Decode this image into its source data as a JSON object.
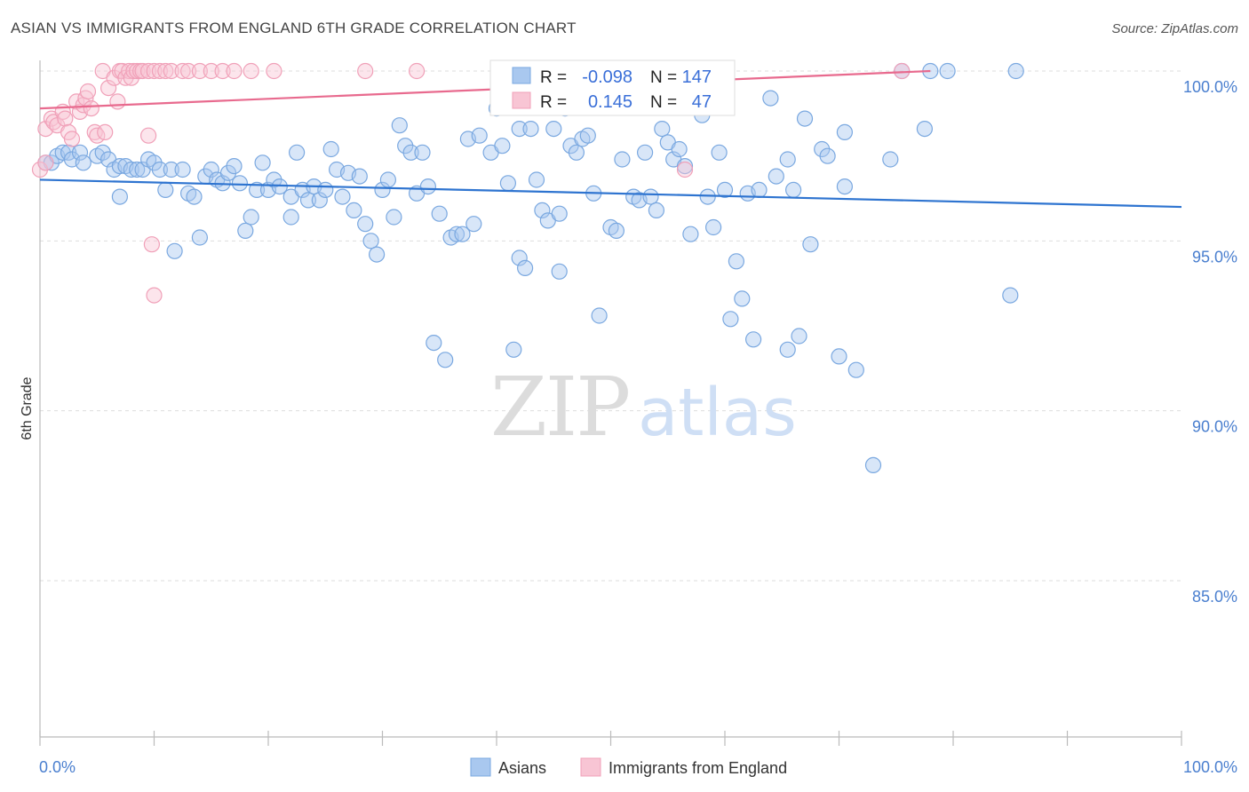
{
  "title": "ASIAN VS IMMIGRANTS FROM ENGLAND 6TH GRADE CORRELATION CHART",
  "source": "Source: ZipAtlas.com",
  "watermark": {
    "part1": "ZIP",
    "part2": "atlas"
  },
  "chart_data": {
    "type": "scatter",
    "ylabel": "6th Grade",
    "xlim": [
      0,
      100
    ],
    "ylim": [
      80,
      100.8
    ],
    "x_tick_labels": [
      "0.0%",
      "100.0%"
    ],
    "y_ticks": [
      85,
      90,
      95,
      100
    ],
    "y_tick_labels": [
      "85.0%",
      "90.0%",
      "95.0%",
      "100.0%"
    ],
    "grid": true,
    "legend_position": "bottom",
    "stats": [
      {
        "r_label": "R =",
        "r_value": "-0.098",
        "n_label": "N =",
        "n_value": "147"
      },
      {
        "r_label": "R =",
        "r_value": "0.145",
        "n_label": "N =",
        "n_value": "47"
      }
    ],
    "series": [
      {
        "name": "Asians",
        "color": "#7aa8e0",
        "fill": "#a9c8ef",
        "trend_color": "#2e74d0",
        "trend": {
          "x": [
            0,
            100
          ],
          "y": [
            96.8,
            96.0
          ]
        },
        "points": [
          [
            0.5,
            97.3
          ],
          [
            1.0,
            97.3
          ],
          [
            1.5,
            97.5
          ],
          [
            2.0,
            97.6
          ],
          [
            2.5,
            97.6
          ],
          [
            2.8,
            97.4
          ],
          [
            3.5,
            97.6
          ],
          [
            3.8,
            97.3
          ],
          [
            5.0,
            97.5
          ],
          [
            5.5,
            97.6
          ],
          [
            6.0,
            97.4
          ],
          [
            6.5,
            97.1
          ],
          [
            7.0,
            97.2
          ],
          [
            7.0,
            96.3
          ],
          [
            7.5,
            97.2
          ],
          [
            8.0,
            97.1
          ],
          [
            8.5,
            97.1
          ],
          [
            9.0,
            97.1
          ],
          [
            9.5,
            97.4
          ],
          [
            10.0,
            97.3
          ],
          [
            10.5,
            97.1
          ],
          [
            11.0,
            96.5
          ],
          [
            11.5,
            97.1
          ],
          [
            12.5,
            97.1
          ],
          [
            11.8,
            94.7
          ],
          [
            13.0,
            96.4
          ],
          [
            13.5,
            96.3
          ],
          [
            14.5,
            96.9
          ],
          [
            14.0,
            95.1
          ],
          [
            15.0,
            97.1
          ],
          [
            15.5,
            96.8
          ],
          [
            16.0,
            96.7
          ],
          [
            16.5,
            97.0
          ],
          [
            17.0,
            97.2
          ],
          [
            17.5,
            96.7
          ],
          [
            18.0,
            95.3
          ],
          [
            18.5,
            95.7
          ],
          [
            19.0,
            96.5
          ],
          [
            19.5,
            97.3
          ],
          [
            20.0,
            96.5
          ],
          [
            20.5,
            96.8
          ],
          [
            21.0,
            96.6
          ],
          [
            22.0,
            96.3
          ],
          [
            22.5,
            97.6
          ],
          [
            22.0,
            95.7
          ],
          [
            23.0,
            96.5
          ],
          [
            23.5,
            96.2
          ],
          [
            24.0,
            96.6
          ],
          [
            24.5,
            96.2
          ],
          [
            25.0,
            96.5
          ],
          [
            25.5,
            97.7
          ],
          [
            26.0,
            97.1
          ],
          [
            26.5,
            96.3
          ],
          [
            27.0,
            97.0
          ],
          [
            27.5,
            95.9
          ],
          [
            28.0,
            96.9
          ],
          [
            28.5,
            95.5
          ],
          [
            29.0,
            95.0
          ],
          [
            29.5,
            94.6
          ],
          [
            30.0,
            96.5
          ],
          [
            30.5,
            96.8
          ],
          [
            31.0,
            95.7
          ],
          [
            31.5,
            98.4
          ],
          [
            32.0,
            97.8
          ],
          [
            32.5,
            97.6
          ],
          [
            33.0,
            96.4
          ],
          [
            33.5,
            97.6
          ],
          [
            34.0,
            96.6
          ],
          [
            34.5,
            92.0
          ],
          [
            35.0,
            95.8
          ],
          [
            35.5,
            91.5
          ],
          [
            36.0,
            95.1
          ],
          [
            36.5,
            95.2
          ],
          [
            37.0,
            95.2
          ],
          [
            37.5,
            98.0
          ],
          [
            38.0,
            95.5
          ],
          [
            38.5,
            98.1
          ],
          [
            39.5,
            97.6
          ],
          [
            40.0,
            98.9
          ],
          [
            40.5,
            97.8
          ],
          [
            41.0,
            96.7
          ],
          [
            41.5,
            91.8
          ],
          [
            42.0,
            98.3
          ],
          [
            42.0,
            94.5
          ],
          [
            42.5,
            94.2
          ],
          [
            43.0,
            98.3
          ],
          [
            43.5,
            96.8
          ],
          [
            44.0,
            95.9
          ],
          [
            44.5,
            95.6
          ],
          [
            45.0,
            98.3
          ],
          [
            45.5,
            95.8
          ],
          [
            45.5,
            94.1
          ],
          [
            46.0,
            98.9
          ],
          [
            46.5,
            97.8
          ],
          [
            47.0,
            97.6
          ],
          [
            47.5,
            98.0
          ],
          [
            48.0,
            98.1
          ],
          [
            48.5,
            96.4
          ],
          [
            49.0,
            92.8
          ],
          [
            50.0,
            95.4
          ],
          [
            50.5,
            95.3
          ],
          [
            51.0,
            97.4
          ],
          [
            52.0,
            96.3
          ],
          [
            52.5,
            96.2
          ],
          [
            53.0,
            97.6
          ],
          [
            53.5,
            96.3
          ],
          [
            54.0,
            95.9
          ],
          [
            54.5,
            98.3
          ],
          [
            55.0,
            97.9
          ],
          [
            55.5,
            97.4
          ],
          [
            56.0,
            97.7
          ],
          [
            56.5,
            97.2
          ],
          [
            57.0,
            95.2
          ],
          [
            58.0,
            98.7
          ],
          [
            58.5,
            96.3
          ],
          [
            59.0,
            95.4
          ],
          [
            59.5,
            97.6
          ],
          [
            60.0,
            96.5
          ],
          [
            60.5,
            92.7
          ],
          [
            61.0,
            94.4
          ],
          [
            61.5,
            93.3
          ],
          [
            62.0,
            96.4
          ],
          [
            62.5,
            92.1
          ],
          [
            63.0,
            96.5
          ],
          [
            64.0,
            99.2
          ],
          [
            64.5,
            96.9
          ],
          [
            65.5,
            91.8
          ],
          [
            65.5,
            97.4
          ],
          [
            66.0,
            96.5
          ],
          [
            66.5,
            92.2
          ],
          [
            67.0,
            98.6
          ],
          [
            67.5,
            94.9
          ],
          [
            68.5,
            97.7
          ],
          [
            69.0,
            97.5
          ],
          [
            70.0,
            91.6
          ],
          [
            70.5,
            96.6
          ],
          [
            70.5,
            98.2
          ],
          [
            71.5,
            91.2
          ],
          [
            73.0,
            88.4
          ],
          [
            74.5,
            97.4
          ],
          [
            75.5,
            100.0
          ],
          [
            77.5,
            98.3
          ],
          [
            78.0,
            100.0
          ],
          [
            79.5,
            100.0
          ],
          [
            85.0,
            93.4
          ],
          [
            85.5,
            100.0
          ]
        ]
      },
      {
        "name": "Immigrants from England",
        "color": "#f0a0b8",
        "fill": "#f8c5d4",
        "trend_color": "#e86a8e",
        "trend": {
          "x": [
            0,
            78
          ],
          "y": [
            98.9,
            100.0
          ]
        },
        "points": [
          [
            0.0,
            97.1
          ],
          [
            0.5,
            97.3
          ],
          [
            0.5,
            98.3
          ],
          [
            1.0,
            98.6
          ],
          [
            1.2,
            98.5
          ],
          [
            1.5,
            98.4
          ],
          [
            2.0,
            98.8
          ],
          [
            2.2,
            98.6
          ],
          [
            2.5,
            98.2
          ],
          [
            2.8,
            98.0
          ],
          [
            3.2,
            99.1
          ],
          [
            3.5,
            98.8
          ],
          [
            3.8,
            99.0
          ],
          [
            4.0,
            99.2
          ],
          [
            4.2,
            99.4
          ],
          [
            4.5,
            98.9
          ],
          [
            4.8,
            98.2
          ],
          [
            5.0,
            98.1
          ],
          [
            5.5,
            100.0
          ],
          [
            5.7,
            98.2
          ],
          [
            6.0,
            99.5
          ],
          [
            6.5,
            99.8
          ],
          [
            6.8,
            99.1
          ],
          [
            7.0,
            100.0
          ],
          [
            7.2,
            100.0
          ],
          [
            7.5,
            99.8
          ],
          [
            7.8,
            100.0
          ],
          [
            8.0,
            99.8
          ],
          [
            8.2,
            100.0
          ],
          [
            8.5,
            100.0
          ],
          [
            8.8,
            100.0
          ],
          [
            9.0,
            100.0
          ],
          [
            9.5,
            100.0
          ],
          [
            10.0,
            100.0
          ],
          [
            9.5,
            98.1
          ],
          [
            9.8,
            94.9
          ],
          [
            10.5,
            100.0
          ],
          [
            11.0,
            100.0
          ],
          [
            11.5,
            100.0
          ],
          [
            12.5,
            100.0
          ],
          [
            13.0,
            100.0
          ],
          [
            14.0,
            100.0
          ],
          [
            15.0,
            100.0
          ],
          [
            16.0,
            100.0
          ],
          [
            17.0,
            100.0
          ],
          [
            18.5,
            100.0
          ],
          [
            20.5,
            100.0
          ],
          [
            28.5,
            100.0
          ],
          [
            33.0,
            100.0
          ],
          [
            10.0,
            93.4
          ],
          [
            56.5,
            97.1
          ],
          [
            75.5,
            100.0
          ]
        ]
      }
    ]
  }
}
